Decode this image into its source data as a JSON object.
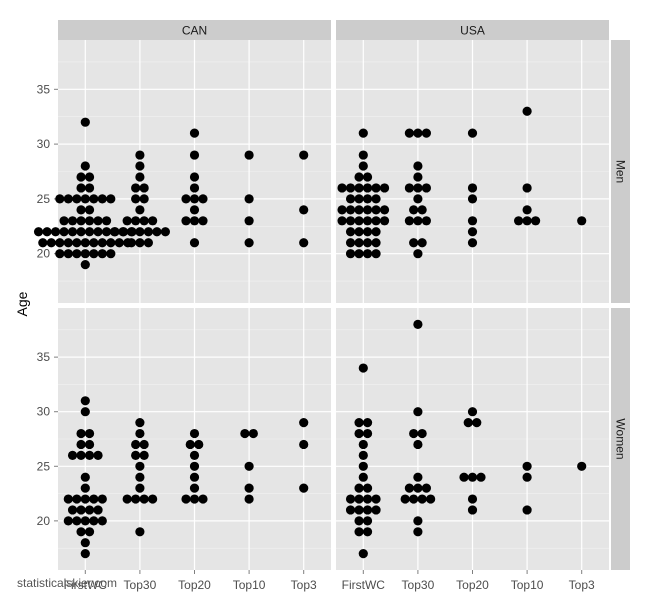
{
  "watermark": "statisticalskier.com",
  "chart_data": {
    "type": "scatter",
    "subtype": "faceted dot plot",
    "ylabel": "Age",
    "xlabel": "",
    "ylim": [
      15.5,
      39.5
    ],
    "yticks": [
      20,
      25,
      30,
      35
    ],
    "categories": [
      "FirstWC",
      "Top30",
      "Top20",
      "Top10",
      "Top3"
    ],
    "columns": [
      "CAN",
      "USA"
    ],
    "rows": [
      "Men",
      "Women"
    ],
    "grid": true,
    "panel_bg": "#e5e5e5",
    "strip_bg": "#cccccc",
    "grid_color": "#ffffff",
    "point_color": "#000000",
    "panels": [
      {
        "col": "CAN",
        "row": "Men",
        "data": {
          "FirstWC": [
            19,
            20,
            20,
            20,
            20,
            20,
            20,
            20,
            21,
            21,
            21,
            21,
            21,
            21,
            21,
            21,
            21,
            21,
            21,
            22,
            22,
            22,
            22,
            22,
            22,
            22,
            22,
            22,
            22,
            22,
            22,
            23,
            23,
            23,
            23,
            23,
            23,
            24,
            24,
            25,
            25,
            25,
            25,
            25,
            25,
            25,
            26,
            26,
            27,
            27,
            28,
            32
          ],
          "Top30": [
            21,
            21,
            21,
            22,
            22,
            22,
            22,
            22,
            22,
            22,
            23,
            23,
            23,
            23,
            24,
            25,
            25,
            26,
            26,
            27,
            28,
            29
          ],
          "Top20": [
            21,
            23,
            23,
            23,
            24,
            25,
            25,
            25,
            26,
            27,
            29,
            31
          ],
          "Top10": [
            21,
            23,
            25,
            29
          ],
          "Top3": [
            21,
            24,
            29
          ]
        }
      },
      {
        "col": "USA",
        "row": "Men",
        "data": {
          "FirstWC": [
            20,
            20,
            20,
            20,
            21,
            21,
            21,
            21,
            22,
            22,
            22,
            22,
            23,
            23,
            23,
            23,
            23,
            23,
            24,
            24,
            24,
            24,
            24,
            24,
            25,
            25,
            25,
            25,
            26,
            26,
            26,
            26,
            26,
            26,
            27,
            27,
            28,
            29,
            31
          ],
          "Top30": [
            20,
            21,
            21,
            23,
            23,
            23,
            24,
            24,
            25,
            26,
            26,
            26,
            27,
            28,
            31,
            31,
            31
          ],
          "Top20": [
            21,
            22,
            23,
            25,
            26,
            31
          ],
          "Top10": [
            23,
            23,
            23,
            24,
            26,
            33
          ],
          "Top3": [
            23
          ]
        }
      },
      {
        "col": "CAN",
        "row": "Women",
        "data": {
          "FirstWC": [
            17,
            18,
            19,
            19,
            20,
            20,
            20,
            20,
            20,
            21,
            21,
            21,
            21,
            22,
            22,
            22,
            22,
            22,
            23,
            24,
            26,
            26,
            26,
            26,
            27,
            27,
            28,
            28,
            30,
            31
          ],
          "Top30": [
            19,
            22,
            22,
            22,
            22,
            23,
            24,
            25,
            26,
            26,
            27,
            27,
            28,
            29
          ],
          "Top20": [
            22,
            22,
            22,
            23,
            24,
            25,
            26,
            27,
            27,
            28
          ],
          "Top10": [
            22,
            23,
            25,
            28,
            28
          ],
          "Top3": [
            23,
            27,
            29
          ]
        }
      },
      {
        "col": "USA",
        "row": "Women",
        "data": {
          "FirstWC": [
            17,
            19,
            19,
            20,
            20,
            21,
            21,
            21,
            21,
            22,
            22,
            22,
            22,
            23,
            23,
            24,
            25,
            26,
            27,
            28,
            28,
            29,
            29,
            34
          ],
          "Top30": [
            19,
            20,
            22,
            22,
            22,
            22,
            23,
            23,
            23,
            24,
            27,
            28,
            28,
            30,
            38
          ],
          "Top20": [
            21,
            22,
            24,
            24,
            24,
            29,
            29,
            30
          ],
          "Top10": [
            21,
            24,
            25
          ],
          "Top3": [
            25
          ]
        }
      }
    ]
  }
}
